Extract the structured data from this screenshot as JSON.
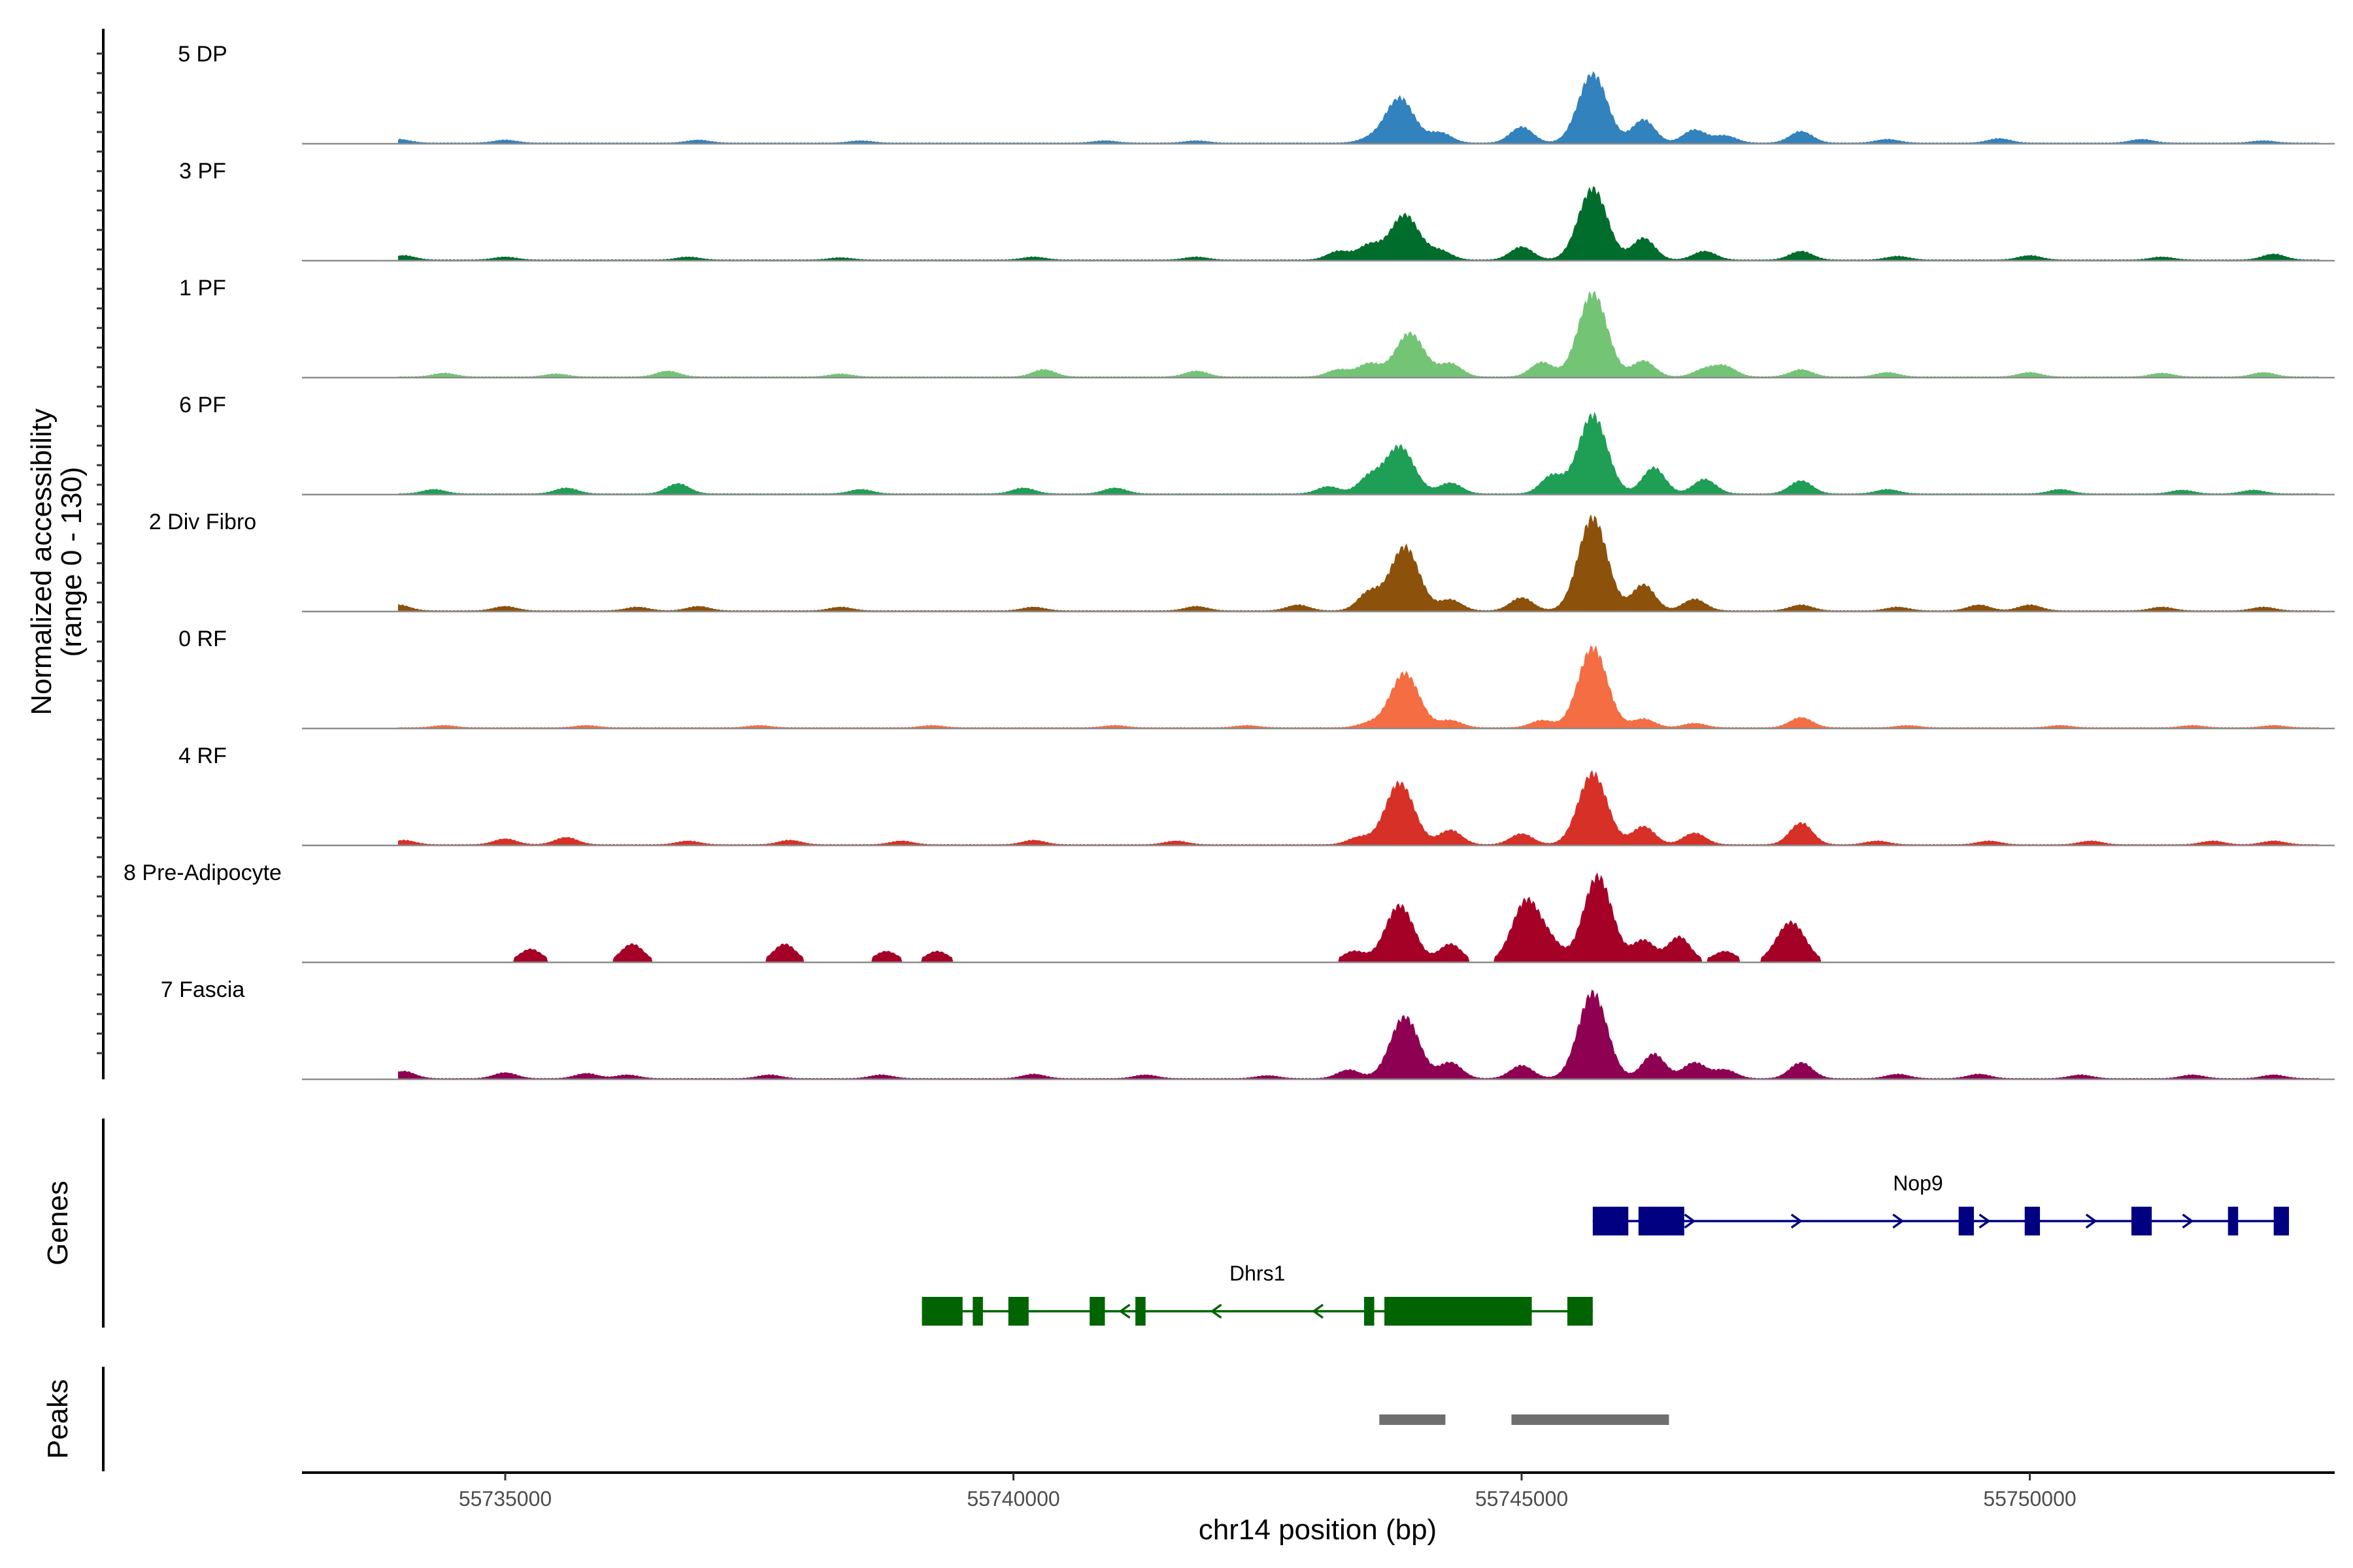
{
  "chart_data": {
    "type": "area",
    "title": "",
    "ylabel_line1": "Normalized accessibility",
    "ylabel_line2": "(range 0 - 130)",
    "xlabel": "chr14 position (bp)",
    "ylim": [
      0,
      130
    ],
    "xlim": [
      55733000,
      55753000
    ],
    "x_ticks": [
      {
        "value": 55735000,
        "label": "55735000"
      },
      {
        "value": 55740000,
        "label": "55740000"
      },
      {
        "value": 55745000,
        "label": "55745000"
      },
      {
        "value": 55750000,
        "label": "55750000"
      }
    ],
    "tracks": [
      {
        "name": "5 DP",
        "color": "#3182bd",
        "profile": "standard",
        "peaks": [
          [
            55733950,
            5
          ],
          [
            55735000,
            4
          ],
          [
            55736900,
            4
          ],
          [
            55738500,
            3
          ],
          [
            55740900,
            3
          ],
          [
            55741800,
            3
          ],
          [
            55743500,
            5
          ],
          [
            55743800,
            62
          ],
          [
            55744200,
            14
          ],
          [
            55745000,
            22
          ],
          [
            55745700,
            95
          ],
          [
            55746200,
            32
          ],
          [
            55746700,
            18
          ],
          [
            55747000,
            10
          ],
          [
            55747750,
            16
          ],
          [
            55748600,
            5
          ],
          [
            55749700,
            6
          ],
          [
            55751100,
            5
          ],
          [
            55752300,
            3
          ]
        ]
      },
      {
        "name": "3 PF",
        "color": "#006d2c",
        "profile": "standard",
        "peaks": [
          [
            55734000,
            6
          ],
          [
            55735000,
            4
          ],
          [
            55736800,
            4
          ],
          [
            55738300,
            3
          ],
          [
            55740200,
            4
          ],
          [
            55741800,
            4
          ],
          [
            55743200,
            12
          ],
          [
            55743500,
            20
          ],
          [
            55743850,
            62
          ],
          [
            55744200,
            12
          ],
          [
            55745000,
            18
          ],
          [
            55745700,
            98
          ],
          [
            55746200,
            30
          ],
          [
            55746800,
            12
          ],
          [
            55747750,
            12
          ],
          [
            55748700,
            5
          ],
          [
            55750000,
            6
          ],
          [
            55751300,
            4
          ],
          [
            55752400,
            8
          ]
        ]
      },
      {
        "name": "1 PF",
        "color": "#74c476",
        "profile": "standard",
        "peaks": [
          [
            55734400,
            5
          ],
          [
            55735500,
            4
          ],
          [
            55736600,
            8
          ],
          [
            55738300,
            4
          ],
          [
            55740300,
            10
          ],
          [
            55741800,
            8
          ],
          [
            55743200,
            10
          ],
          [
            55743500,
            18
          ],
          [
            55743900,
            60
          ],
          [
            55744300,
            18
          ],
          [
            55745200,
            20
          ],
          [
            55745700,
            115
          ],
          [
            55746200,
            22
          ],
          [
            55746800,
            10
          ],
          [
            55747000,
            14
          ],
          [
            55747750,
            10
          ],
          [
            55748600,
            6
          ],
          [
            55750000,
            6
          ],
          [
            55751300,
            5
          ],
          [
            55752300,
            6
          ]
        ]
      },
      {
        "name": "6 PF",
        "color": "#1f9e55",
        "profile": "standard",
        "peaks": [
          [
            55734300,
            6
          ],
          [
            55735600,
            8
          ],
          [
            55736700,
            14
          ],
          [
            55738500,
            6
          ],
          [
            55740100,
            8
          ],
          [
            55741000,
            8
          ],
          [
            55743100,
            10
          ],
          [
            55743500,
            22
          ],
          [
            55743800,
            65
          ],
          [
            55744300,
            15
          ],
          [
            55745300,
            25
          ],
          [
            55745700,
            108
          ],
          [
            55746300,
            36
          ],
          [
            55746800,
            20
          ],
          [
            55747750,
            18
          ],
          [
            55748600,
            6
          ],
          [
            55750300,
            6
          ],
          [
            55751500,
            5
          ],
          [
            55752200,
            5
          ]
        ]
      },
      {
        "name": "2 Div Fibro",
        "color": "#8c510a",
        "profile": "standard",
        "peaks": [
          [
            55733950,
            8
          ],
          [
            55735000,
            6
          ],
          [
            55736300,
            5
          ],
          [
            55736900,
            6
          ],
          [
            55738300,
            5
          ],
          [
            55740200,
            5
          ],
          [
            55741800,
            6
          ],
          [
            55742800,
            8
          ],
          [
            55743500,
            25
          ],
          [
            55743850,
            88
          ],
          [
            55744300,
            15
          ],
          [
            55745000,
            18
          ],
          [
            55745700,
            128
          ],
          [
            55746200,
            36
          ],
          [
            55746700,
            16
          ],
          [
            55747750,
            8
          ],
          [
            55748700,
            5
          ],
          [
            55749500,
            8
          ],
          [
            55750000,
            8
          ],
          [
            55751300,
            5
          ],
          [
            55752300,
            5
          ]
        ]
      },
      {
        "name": "0 RF",
        "color": "#f46d43",
        "profile": "standard",
        "peaks": [
          [
            55734400,
            3
          ],
          [
            55735800,
            3
          ],
          [
            55737500,
            3
          ],
          [
            55739200,
            3
          ],
          [
            55741000,
            3
          ],
          [
            55742300,
            3
          ],
          [
            55743500,
            6
          ],
          [
            55743850,
            75
          ],
          [
            55744300,
            10
          ],
          [
            55745200,
            10
          ],
          [
            55745700,
            110
          ],
          [
            55746200,
            12
          ],
          [
            55746700,
            6
          ],
          [
            55747750,
            14
          ],
          [
            55748800,
            3
          ],
          [
            55750300,
            3
          ],
          [
            55751600,
            3
          ],
          [
            55752400,
            3
          ]
        ]
      },
      {
        "name": "4 RF",
        "color": "#d73027",
        "profile": "standard",
        "peaks": [
          [
            55734000,
            6
          ],
          [
            55735000,
            8
          ],
          [
            55735600,
            10
          ],
          [
            55736800,
            5
          ],
          [
            55737800,
            6
          ],
          [
            55738900,
            5
          ],
          [
            55740200,
            6
          ],
          [
            55741600,
            5
          ],
          [
            55743400,
            10
          ],
          [
            55743800,
            85
          ],
          [
            55744300,
            20
          ],
          [
            55745000,
            15
          ],
          [
            55745700,
            98
          ],
          [
            55746200,
            25
          ],
          [
            55746700,
            16
          ],
          [
            55747750,
            30
          ],
          [
            55748500,
            5
          ],
          [
            55749600,
            5
          ],
          [
            55750600,
            5
          ],
          [
            55751800,
            5
          ],
          [
            55752400,
            5
          ]
        ]
      },
      {
        "name": "8 Pre-Adipocyte",
        "color": "#a50026",
        "profile": "sparse",
        "peaks": [
          [
            55735250,
            18
          ],
          [
            55736250,
            25
          ],
          [
            55737750,
            25
          ],
          [
            55738750,
            15
          ],
          [
            55739250,
            15
          ],
          [
            55743350,
            15
          ],
          [
            55743800,
            78
          ],
          [
            55744300,
            25
          ],
          [
            55745050,
            85
          ],
          [
            55745300,
            20
          ],
          [
            55745750,
            118
          ],
          [
            55746200,
            30
          ],
          [
            55746550,
            35
          ],
          [
            55747000,
            15
          ],
          [
            55747650,
            55
          ]
        ]
      },
      {
        "name": "7 Fascia",
        "color": "#8e0152",
        "profile": "standard",
        "peaks": [
          [
            55734000,
            10
          ],
          [
            55735000,
            8
          ],
          [
            55735800,
            7
          ],
          [
            55736200,
            5
          ],
          [
            55737600,
            5
          ],
          [
            55738700,
            5
          ],
          [
            55740200,
            6
          ],
          [
            55741300,
            5
          ],
          [
            55742500,
            4
          ],
          [
            55743300,
            12
          ],
          [
            55743850,
            85
          ],
          [
            55744300,
            22
          ],
          [
            55745000,
            18
          ],
          [
            55745700,
            118
          ],
          [
            55746300,
            34
          ],
          [
            55746700,
            22
          ],
          [
            55747000,
            12
          ],
          [
            55747750,
            22
          ],
          [
            55748700,
            6
          ],
          [
            55749500,
            6
          ],
          [
            55750500,
            5
          ],
          [
            55751600,
            5
          ],
          [
            55752400,
            5
          ]
        ]
      }
    ],
    "genes_panel_title": "Genes",
    "peaks_panel_title": "Peaks",
    "genes": [
      {
        "name": "Nop9",
        "strand": "+",
        "color": "#000080",
        "start": 55745700,
        "end": 55752550,
        "exons": [
          [
            55745700,
            55746050
          ],
          [
            55746150,
            55746600
          ],
          [
            55749300,
            55749450
          ],
          [
            55749950,
            55750100
          ],
          [
            55751000,
            55751200
          ],
          [
            55751950,
            55752050
          ],
          [
            55752400,
            55752550
          ]
        ],
        "arrows": [
          55745800,
          55746650,
          55747700,
          55748700,
          55749550,
          55750600,
          55751550
        ]
      },
      {
        "name": "Dhrs1",
        "strand": "-",
        "color": "#006400",
        "start": 55739100,
        "end": 55745700,
        "exons": [
          [
            55739100,
            55739500
          ],
          [
            55739600,
            55739700
          ],
          [
            55739950,
            55740150
          ],
          [
            55740750,
            55740900
          ],
          [
            55741200,
            55741300
          ],
          [
            55743450,
            55743550
          ],
          [
            55743650,
            55745100
          ],
          [
            55745450,
            55745700
          ]
        ],
        "arrows": [
          55741100,
          55742000,
          55743000
        ]
      }
    ],
    "peak_regions": [
      [
        55743600,
        55744250
      ],
      [
        55744900,
        55746450
      ]
    ]
  }
}
